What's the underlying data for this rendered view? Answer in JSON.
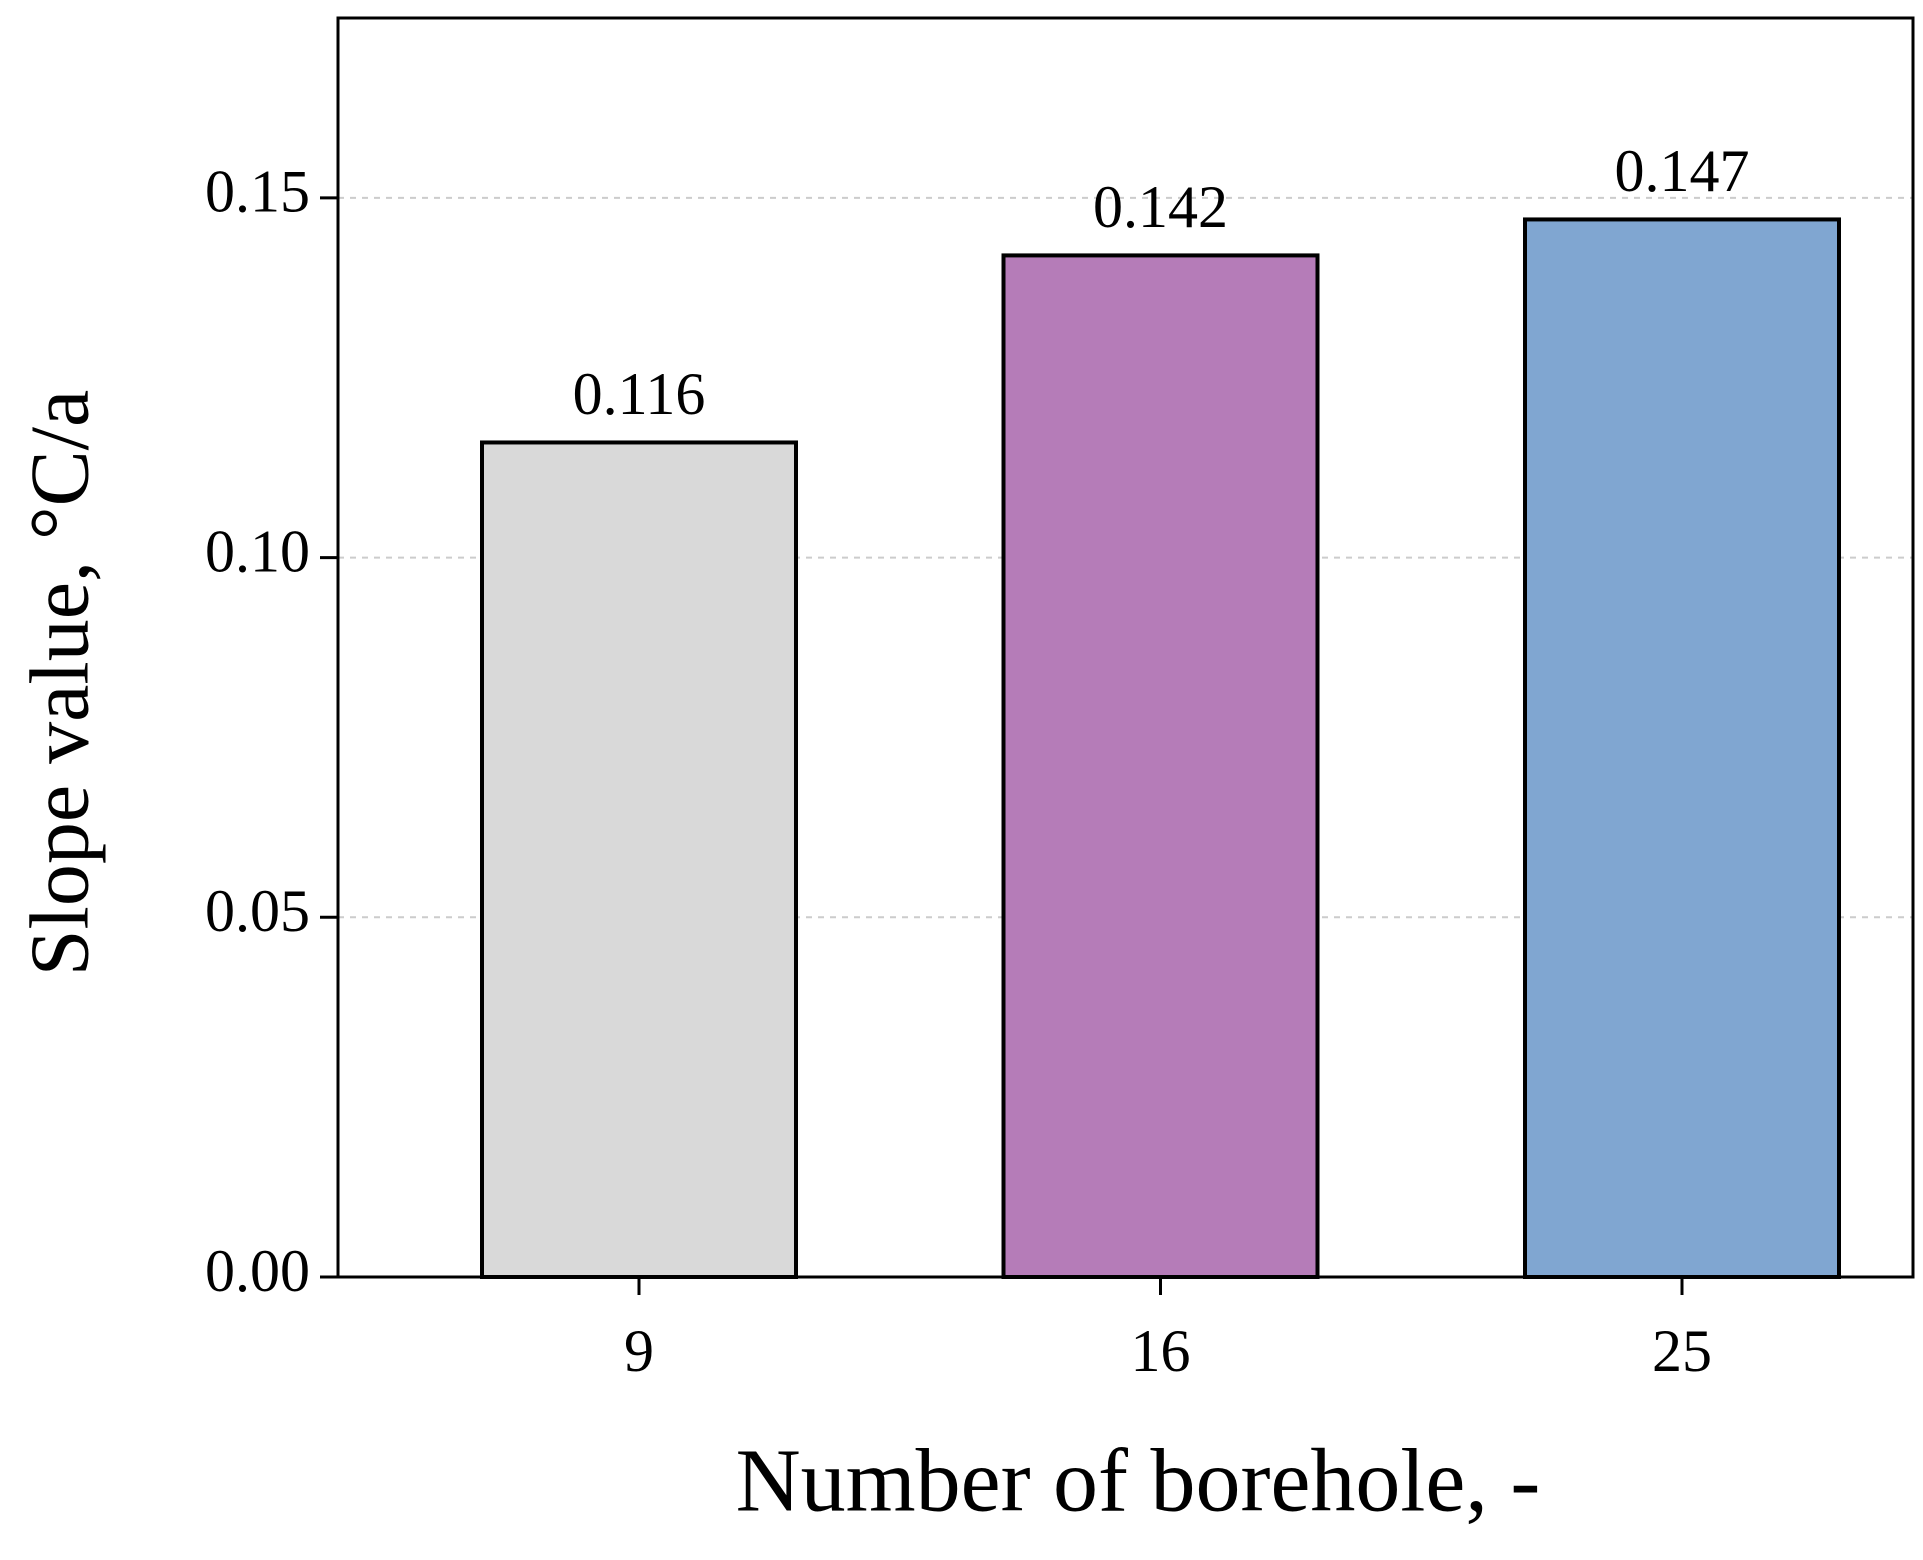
{
  "chart_data": {
    "type": "bar",
    "x_label": "Number of borehole, -",
    "y_label": "Slope value,  °C/a",
    "categories": [
      "9",
      "16",
      "25"
    ],
    "values": [
      0.116,
      0.142,
      0.147
    ],
    "colors": [
      "#d9d9d9",
      "#b57cb8",
      "#80a6d1"
    ],
    "ylim": [
      0,
      0.175
    ],
    "yticks": [
      {
        "value": 0,
        "label": "0.00"
      },
      {
        "value": 0.05,
        "label": "0.05"
      },
      {
        "value": 0.1,
        "label": "0.10"
      },
      {
        "value": 0.15,
        "label": "0.15"
      }
    ],
    "grid": true
  }
}
